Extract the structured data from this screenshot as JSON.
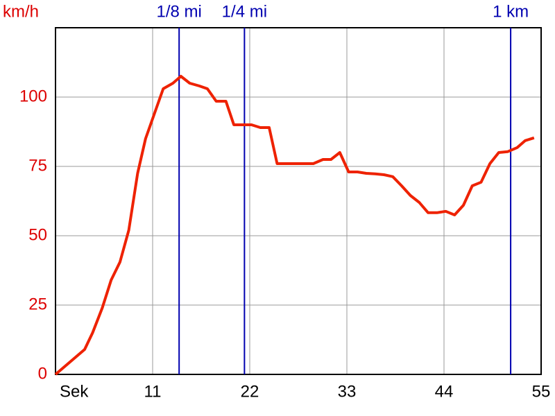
{
  "chart_data": {
    "type": "line",
    "y_label": "km/h",
    "color": "#ee2200",
    "x": [
      0,
      3.3,
      4.2,
      5.3,
      6.3,
      7.3,
      8.3,
      9.3,
      10.2,
      11.2,
      12.2,
      13.3,
      14.2,
      15.2,
      16.3,
      17.2,
      18.2,
      19.3,
      20.2,
      21.2,
      22.2,
      23.2,
      24.2,
      25.1,
      26.2,
      27.2,
      28.1,
      29.2,
      30.3,
      31.2,
      32.2,
      33.2,
      34.2,
      35.2,
      36.2,
      37.2,
      38.2,
      39.2,
      40.2,
      41.2,
      42.2,
      43.2,
      44.2,
      45.2,
      46.2,
      47.2,
      48.2,
      49.2,
      50.2,
      51.2,
      52.3,
      53.2,
      54.2
    ],
    "values": [
      0,
      9,
      15,
      24,
      34,
      40.5,
      52,
      72.5,
      85,
      94,
      103,
      105,
      107.5,
      105,
      104,
      103,
      98.5,
      98.5,
      90,
      90,
      90,
      89,
      89,
      76,
      76,
      76,
      76,
      76,
      77.5,
      77.5,
      80,
      73,
      73,
      72.5,
      72.3,
      72,
      71.3,
      68,
      64.5,
      62,
      58.3,
      58.3,
      58.8,
      57.5,
      61,
      68,
      69.3,
      76,
      80,
      80.3,
      81.8,
      84.3,
      85.3
    ],
    "xlim": [
      0,
      55
    ],
    "xticks": [
      {
        "value": 0,
        "label": "Sek"
      },
      11,
      22,
      33,
      44,
      55
    ],
    "ylim": [
      0,
      125
    ],
    "yticks": [
      0,
      25,
      50,
      75,
      100
    ],
    "grid": true,
    "markers": [
      {
        "label": "1/8 mi",
        "x": 14.0
      },
      {
        "label": "1/4 mi",
        "x": 21.4
      },
      {
        "label": "1 km",
        "x": 51.55
      }
    ],
    "marker_color": "#0000b0"
  }
}
